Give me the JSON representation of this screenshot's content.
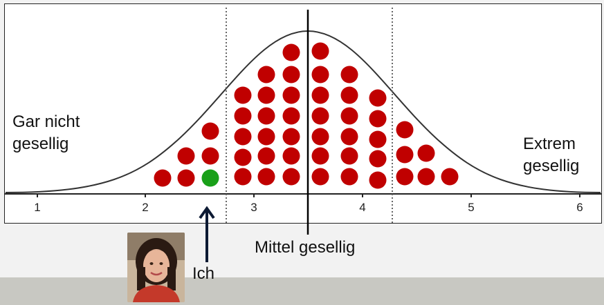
{
  "labels": {
    "left": "Gar nicht gesellig",
    "right": "Extrem gesellig",
    "mean": "Mittel gesellig",
    "me": "Ich"
  },
  "axis": {
    "ticks": [
      "1",
      "2",
      "3",
      "4",
      "5",
      "6"
    ]
  },
  "colors": {
    "population_dot": "#c00000",
    "me_dot": "#19a019",
    "curve": "#333333",
    "mean_line": "#000000",
    "sd_lines": "#666666"
  },
  "icons": {
    "arrow": "up-arrow-icon",
    "photo": "person-photo"
  }
}
